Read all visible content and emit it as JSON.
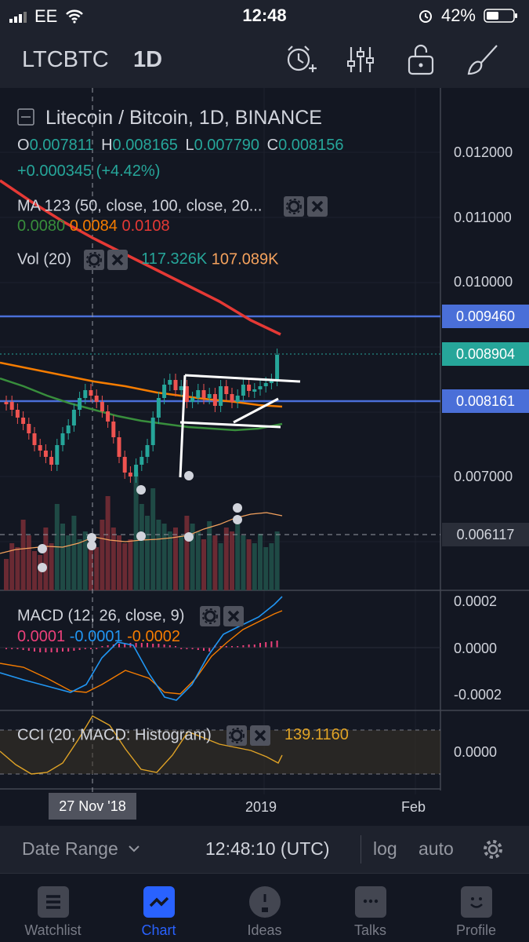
{
  "status_bar": {
    "carrier": "EE",
    "time": "12:48",
    "battery": "42%"
  },
  "toolbar": {
    "symbol": "LTCBTC",
    "interval": "1D",
    "icons": [
      "alarm-add-icon",
      "indicators-icon",
      "unlock-icon",
      "drawing-brush-icon"
    ]
  },
  "legend": {
    "title": "Litecoin / Bitcoin, 1D, BINANCE",
    "ohlc": {
      "o_label": "O",
      "o": "0.007811",
      "h_label": "H",
      "h": "0.008165",
      "l_label": "L",
      "l": "0.007790",
      "c_label": "C",
      "c": "0.008156"
    },
    "change": "+0.000345 (+4.42%)",
    "ma": {
      "label": "MA 123 (50, close, 100, close, 20...",
      "v1": "0.0080",
      "v2": "0.0084",
      "v3": "0.0108"
    },
    "vol": {
      "label": "Vol (20)",
      "v1": "117.326K",
      "v2": "107.089K"
    },
    "macd": {
      "label": "MACD (12, 26, close, 9)",
      "v1": "0.0001",
      "v2": "-0.0001",
      "v3": "-0.0002"
    },
    "cci": {
      "label": "CCI (20, MACD: Histogram)",
      "v1": "139.1160"
    }
  },
  "price_axis": {
    "labels": [
      "0.012000",
      "0.011000",
      "0.010000",
      "0.007000"
    ],
    "tag_blue_top": "0.009460",
    "tag_green": "0.008904",
    "tag_blue_mid": "0.008161",
    "tag_dark": "0.006117",
    "macd_labels": [
      "0.0002",
      "0.0000",
      "-0.0002"
    ],
    "cci_labels": [
      "0.0000"
    ]
  },
  "time_axis": {
    "crosshair_label": "27 Nov '18",
    "labels": [
      "2019",
      "Feb"
    ]
  },
  "bottom_bar": {
    "date_range": "Date Range",
    "utc_time": "12:48:10 (UTC)",
    "log": "log",
    "auto": "auto"
  },
  "tabs": [
    {
      "label": "Watchlist",
      "icon": "list-icon"
    },
    {
      "label": "Chart",
      "icon": "chart-icon"
    },
    {
      "label": "Ideas",
      "icon": "lightbulb-icon"
    },
    {
      "label": "Talks",
      "icon": "chat-icon"
    },
    {
      "label": "Profile",
      "icon": "smiley-icon"
    }
  ],
  "colors": {
    "background": "#131722",
    "up": "#26a69a",
    "down": "#ef5350",
    "ma_fast": "#388e3c",
    "ma_mid": "#f57c00",
    "ma_slow": "#e53935",
    "hline": "#4a6fd8",
    "accent": "#2962ff"
  }
}
